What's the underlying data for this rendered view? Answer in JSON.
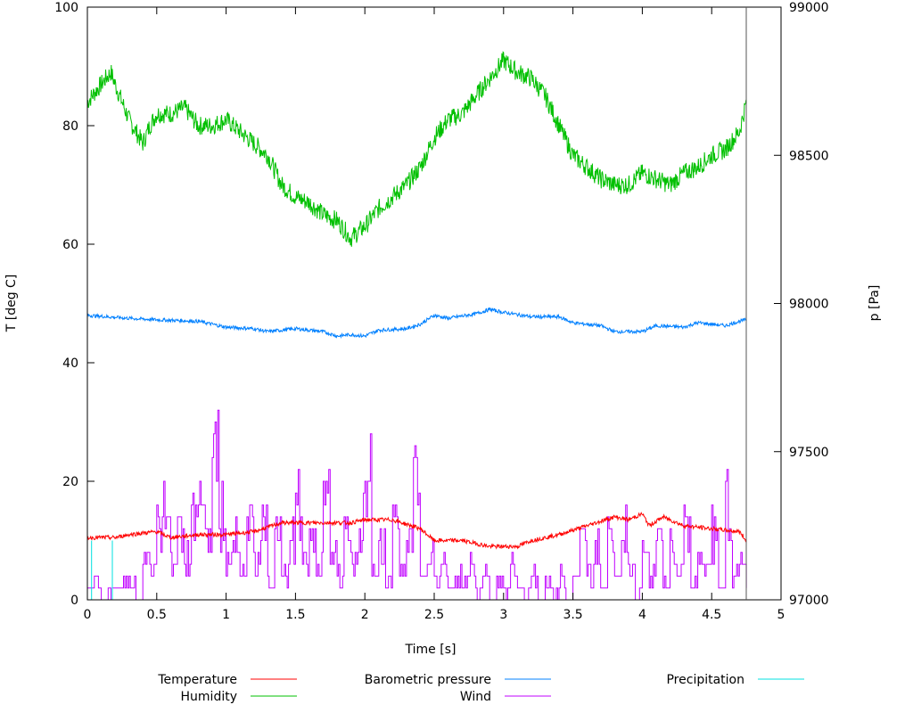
{
  "chart_data": {
    "type": "line",
    "title": "",
    "xlabel": "Time [s]",
    "ylabel": "T [deg C]",
    "y2label": "p [Pa]",
    "xlim": [
      0,
      5
    ],
    "ylim": [
      0,
      100
    ],
    "y2lim": [
      97000,
      99000
    ],
    "xticks": [
      "0",
      "0.5",
      "1",
      "1.5",
      "2",
      "2.5",
      "3",
      "3.5",
      "4",
      "4.5",
      "5"
    ],
    "yticks": [
      "0",
      "20",
      "40",
      "60",
      "80",
      "100"
    ],
    "y2ticks": [
      "97000",
      "97500",
      "98000",
      "98500",
      "99000"
    ],
    "grid": false,
    "legend_position": "bottom",
    "series": [
      {
        "name": "Temperature",
        "color": "#ff0000",
        "axis": "left",
        "x": [
          0,
          0.2,
          0.3,
          0.5,
          0.6,
          0.8,
          0.9,
          1.0,
          1.2,
          1.4,
          1.5,
          1.7,
          1.9,
          2.0,
          2.2,
          2.4,
          2.5,
          2.7,
          2.9,
          3.1,
          3.2,
          3.4,
          3.6,
          3.8,
          3.9,
          4.0,
          4.05,
          4.15,
          4.3,
          4.5,
          4.7,
          4.75
        ],
        "y": [
          10.5,
          10.5,
          11,
          11.5,
          10.5,
          11,
          11,
          11,
          11.5,
          13,
          13,
          13,
          13,
          13.5,
          13.5,
          12,
          10,
          10,
          9,
          9,
          10,
          11,
          12.5,
          14,
          13.5,
          14.5,
          12.5,
          14,
          12.5,
          12,
          11.5,
          10
        ]
      },
      {
        "name": "Humidity",
        "color": "#00c000",
        "axis": "left",
        "x": [
          0,
          0.1,
          0.17,
          0.2,
          0.3,
          0.4,
          0.45,
          0.5,
          0.6,
          0.7,
          0.8,
          0.9,
          1.0,
          1.1,
          1.2,
          1.3,
          1.4,
          1.5,
          1.6,
          1.7,
          1.8,
          1.9,
          2.0,
          2.1,
          2.2,
          2.3,
          2.4,
          2.5,
          2.6,
          2.7,
          2.8,
          2.9,
          3.0,
          3.1,
          3.2,
          3.3,
          3.4,
          3.5,
          3.6,
          3.7,
          3.8,
          3.9,
          4.0,
          4.1,
          4.2,
          4.3,
          4.4,
          4.5,
          4.6,
          4.7,
          4.75
        ],
        "y": [
          84,
          87,
          89,
          87,
          81,
          77,
          80,
          82,
          82,
          83,
          80,
          80,
          81,
          79,
          77,
          75,
          70,
          68,
          67,
          65,
          64,
          61,
          63,
          66,
          68,
          70,
          73,
          78,
          81,
          82,
          85,
          88,
          91,
          89,
          88,
          85,
          80,
          75,
          73,
          71,
          70,
          70,
          72,
          71,
          70,
          72,
          73,
          75,
          76,
          79,
          84
        ]
      },
      {
        "name": "Barometric pressure",
        "color": "#0080ff",
        "axis": "right",
        "x": [
          0,
          0.3,
          0.5,
          0.8,
          1.0,
          1.2,
          1.3,
          1.5,
          1.7,
          1.8,
          1.9,
          2.0,
          2.1,
          2.3,
          2.4,
          2.5,
          2.6,
          2.8,
          2.9,
          3.0,
          3.2,
          3.4,
          3.5,
          3.7,
          3.8,
          4.0,
          4.1,
          4.3,
          4.4,
          4.6,
          4.7,
          4.75
        ],
        "y": [
          97960,
          97950,
          97945,
          97940,
          97920,
          97915,
          97905,
          97915,
          97905,
          97890,
          97895,
          97890,
          97910,
          97915,
          97930,
          97960,
          97950,
          97965,
          97980,
          97970,
          97955,
          97955,
          97935,
          97925,
          97905,
          97905,
          97925,
          97920,
          97935,
          97925,
          97940,
          97945
        ]
      },
      {
        "name": "Wind",
        "color": "#c000ff",
        "axis": "left",
        "x_start": 0,
        "x_step": 0.05,
        "y": [
          2,
          4,
          0,
          2,
          2,
          6,
          4,
          0,
          8,
          6,
          18,
          24,
          8,
          16,
          10,
          20,
          30,
          14,
          34,
          20,
          10,
          14,
          6,
          18,
          8,
          16,
          4,
          20,
          6,
          14,
          22,
          10,
          14,
          8,
          28,
          12,
          6,
          16,
          10,
          18,
          30,
          8,
          16,
          4,
          20,
          10,
          14,
          28,
          6,
          10,
          4,
          8,
          2,
          6,
          4,
          8,
          2,
          6,
          0,
          4,
          2,
          8,
          4,
          2,
          6,
          0,
          4,
          2,
          6,
          0,
          4,
          16,
          6,
          12,
          4,
          14,
          8,
          18,
          6,
          2,
          10,
          6,
          14,
          4,
          12,
          6,
          16,
          4,
          10,
          8,
          16,
          2,
          22,
          6,
          8,
          4
        ]
      },
      {
        "name": "Precipitation",
        "color": "#00e0e0",
        "axis": "left",
        "x": [
          0,
          0.03,
          0.03,
          0.03,
          0.18,
          0.18,
          0.18,
          4.75
        ],
        "y": [
          0,
          0,
          10,
          0,
          0,
          10,
          0,
          0
        ]
      }
    ]
  }
}
